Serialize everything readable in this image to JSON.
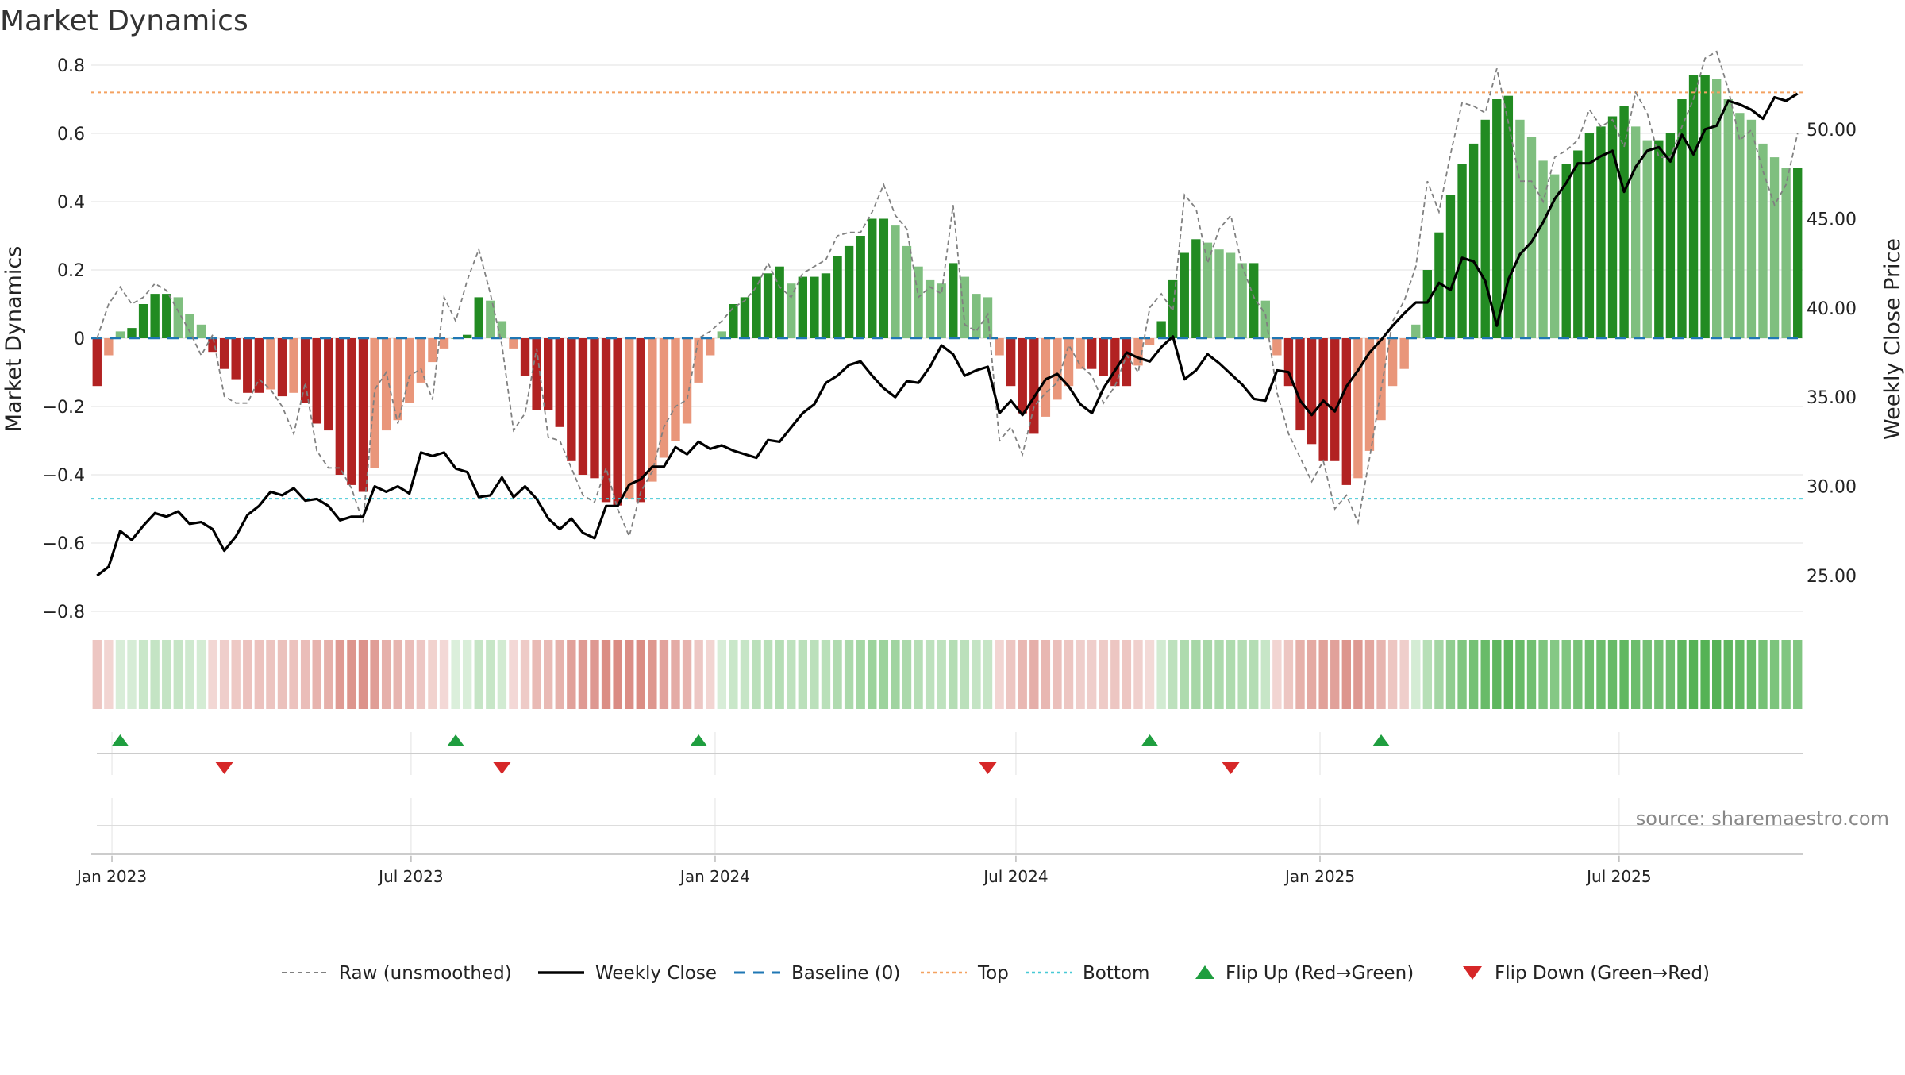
{
  "chart_data": {
    "type": "composite-bar-line",
    "title": "Market Dynamics",
    "ylabel_left": "Market Dynamics",
    "ylabel_right": "Weekly Close Price",
    "source": "source: sharemaestro.com",
    "ylim_left": [
      -0.8,
      0.8
    ],
    "ylim_right": [
      23.0,
      53.6
    ],
    "yticks_left": [
      "0.8",
      "0.6",
      "0.4",
      "0.2",
      "0",
      "−0.2",
      "−0.4",
      "−0.6",
      "−0.8"
    ],
    "yticks_right": [
      "50.00",
      "45.00",
      "40.00",
      "35.00",
      "30.00",
      "25.00"
    ],
    "xticks": [
      "Jan 2023",
      "Jul 2023",
      "Jan 2024",
      "Jul 2024",
      "Jan 2025",
      "Jul 2025"
    ],
    "date_range": [
      "2022-12-23",
      "2025-10-17"
    ],
    "top_level": 0.72,
    "bottom_level": -0.47,
    "baseline": 0,
    "weeks": 148,
    "dynamics": [
      -0.14,
      -0.05,
      0.02,
      0.03,
      0.1,
      0.13,
      0.13,
      0.12,
      0.07,
      0.04,
      -0.04,
      -0.09,
      -0.12,
      -0.16,
      -0.16,
      -0.15,
      -0.17,
      -0.16,
      -0.19,
      -0.25,
      -0.27,
      -0.4,
      -0.43,
      -0.45,
      -0.38,
      -0.27,
      -0.24,
      -0.19,
      -0.13,
      -0.07,
      -0.03,
      0.0,
      0.01,
      0.12,
      0.11,
      0.05,
      -0.03,
      -0.11,
      -0.21,
      -0.21,
      -0.26,
      -0.36,
      -0.4,
      -0.41,
      -0.48,
      -0.49,
      -0.47,
      -0.48,
      -0.42,
      -0.35,
      -0.3,
      -0.25,
      -0.13,
      -0.05,
      0.02,
      0.1,
      0.12,
      0.18,
      0.19,
      0.21,
      0.16,
      0.18,
      0.18,
      0.19,
      0.24,
      0.27,
      0.3,
      0.35,
      0.35,
      0.33,
      0.27,
      0.21,
      0.17,
      0.16,
      0.22,
      0.18,
      0.13,
      0.12,
      -0.05,
      -0.14,
      -0.22,
      -0.28,
      -0.23,
      -0.18,
      -0.14,
      -0.09,
      -0.09,
      -0.11,
      -0.14,
      -0.14,
      -0.08,
      -0.02,
      0.05,
      0.17,
      0.25,
      0.29,
      0.28,
      0.26,
      0.25,
      0.22,
      0.22,
      0.11,
      -0.05,
      -0.14,
      -0.27,
      -0.31,
      -0.36,
      -0.36,
      -0.43,
      -0.41,
      -0.33,
      -0.24,
      -0.14,
      -0.09,
      0.04,
      0.2,
      0.31,
      0.42,
      0.51,
      0.57,
      0.64,
      0.7,
      0.71,
      0.64,
      0.59,
      0.52,
      0.48,
      0.51,
      0.55,
      0.6,
      0.62,
      0.65,
      0.68,
      0.62,
      0.58,
      0.58,
      0.6,
      0.7,
      0.77,
      0.77,
      0.76,
      0.7,
      0.66,
      0.64,
      0.57,
      0.53,
      0.5,
      0.5
    ],
    "raw": [
      0.0,
      0.1,
      0.15,
      0.1,
      0.12,
      0.16,
      0.14,
      0.08,
      0.02,
      -0.05,
      0.01,
      -0.17,
      -0.19,
      -0.19,
      -0.12,
      -0.15,
      -0.2,
      -0.28,
      -0.13,
      -0.33,
      -0.38,
      -0.38,
      -0.44,
      -0.54,
      -0.15,
      -0.1,
      -0.25,
      -0.11,
      -0.09,
      -0.18,
      0.12,
      0.05,
      0.17,
      0.26,
      0.13,
      -0.02,
      -0.27,
      -0.22,
      -0.03,
      -0.29,
      -0.3,
      -0.38,
      -0.46,
      -0.48,
      -0.38,
      -0.5,
      -0.58,
      -0.45,
      -0.39,
      -0.26,
      -0.2,
      -0.18,
      0.0,
      0.02,
      0.05,
      0.09,
      0.11,
      0.15,
      0.22,
      0.15,
      0.12,
      0.19,
      0.21,
      0.23,
      0.3,
      0.31,
      0.31,
      0.37,
      0.45,
      0.36,
      0.32,
      0.12,
      0.15,
      0.13,
      0.39,
      0.04,
      0.02,
      0.07,
      -0.3,
      -0.26,
      -0.34,
      -0.2,
      -0.16,
      -0.13,
      -0.02,
      -0.08,
      -0.11,
      -0.19,
      -0.14,
      -0.05,
      -0.1,
      0.09,
      0.13,
      0.08,
      0.42,
      0.38,
      0.22,
      0.32,
      0.36,
      0.21,
      0.12,
      0.07,
      -0.16,
      -0.28,
      -0.35,
      -0.42,
      -0.36,
      -0.5,
      -0.46,
      -0.54,
      -0.35,
      -0.15,
      0.05,
      0.11,
      0.21,
      0.46,
      0.37,
      0.54,
      0.69,
      0.68,
      0.66,
      0.79,
      0.63,
      0.46,
      0.46,
      0.4,
      0.53,
      0.55,
      0.58,
      0.67,
      0.62,
      0.64,
      0.56,
      0.72,
      0.66,
      0.53,
      0.53,
      0.62,
      0.7,
      0.82,
      0.84,
      0.73,
      0.58,
      0.61,
      0.49,
      0.39,
      0.45,
      0.6
    ],
    "weekly_close": [
      25.0,
      25.5,
      27.5,
      27.0,
      27.8,
      28.5,
      28.3,
      28.6,
      27.9,
      28.0,
      27.6,
      26.4,
      27.2,
      28.4,
      28.9,
      29.7,
      29.5,
      29.9,
      29.2,
      29.3,
      28.9,
      28.1,
      28.3,
      28.3,
      30.0,
      29.7,
      30.0,
      29.6,
      31.9,
      31.7,
      31.9,
      31.0,
      30.8,
      29.4,
      29.5,
      30.5,
      29.4,
      30.0,
      29.3,
      28.2,
      27.6,
      28.2,
      27.4,
      27.1,
      28.9,
      28.9,
      30.1,
      30.4,
      31.1,
      31.1,
      32.2,
      31.8,
      32.5,
      32.1,
      32.3,
      32.0,
      31.8,
      31.6,
      32.6,
      32.5,
      33.3,
      34.1,
      34.6,
      35.8,
      36.2,
      36.8,
      37.0,
      36.2,
      35.5,
      35.0,
      35.9,
      35.8,
      36.7,
      37.9,
      37.4,
      36.2,
      36.5,
      36.7,
      34.1,
      34.8,
      34.0,
      35.0,
      36.0,
      36.3,
      35.6,
      34.6,
      34.1,
      35.5,
      36.5,
      37.5,
      37.2,
      37.0,
      37.8,
      38.4,
      36.0,
      36.5,
      37.4,
      36.9,
      36.3,
      35.7,
      34.9,
      34.8,
      36.5,
      36.4,
      34.8,
      34.0,
      34.8,
      34.2,
      35.6,
      36.5,
      37.5,
      38.2,
      39.0,
      39.7,
      40.3,
      40.3,
      41.4,
      41.0,
      42.8,
      42.6,
      41.5,
      39.0,
      41.6,
      43.0,
      43.7,
      44.8,
      46.1,
      47.0,
      48.1,
      48.1,
      48.5,
      48.8,
      46.5,
      47.9,
      48.8,
      49.0,
      48.2,
      49.7,
      48.6,
      50.0,
      50.2,
      51.6,
      51.4,
      51.1,
      50.6,
      51.8,
      51.6,
      52.0
    ],
    "flips_up": [
      "2023-01-06",
      "2023-07-28",
      "2023-12-22",
      "2024-09-20",
      "2025-02-07"
    ],
    "flips_down": [
      "2023-03-10",
      "2023-08-25",
      "2024-06-14",
      "2024-11-08"
    ],
    "colors": {
      "strong_green": "#228b22",
      "light_green": "#7fbf7f",
      "strong_red": "#b22222",
      "light_red": "#e9967a",
      "raw": "#808080",
      "close": "#000000",
      "baseline": "#1f77b4",
      "top": "#f4a261",
      "bottom": "#48c9d6",
      "flip_up": "#1f9e3f",
      "flip_down": "#d62728"
    },
    "legend": [
      {
        "label": "Raw (unsmoothed)",
        "kind": "dashed-gray"
      },
      {
        "label": "Weekly Close",
        "kind": "solid-black"
      },
      {
        "label": "Baseline (0)",
        "kind": "dashed-blue"
      },
      {
        "label": "Top",
        "kind": "dotted-orange"
      },
      {
        "label": "Bottom",
        "kind": "dotted-cyan"
      },
      {
        "label": "Flip Up (Red→Green)",
        "kind": "triangle-up"
      },
      {
        "label": "Flip Down (Green→Red)",
        "kind": "triangle-down"
      }
    ]
  }
}
